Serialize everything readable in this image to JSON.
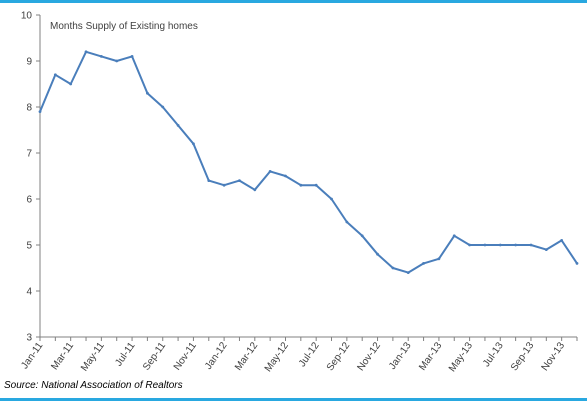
{
  "chart_data": {
    "type": "line",
    "title": "Months Supply of Existing homes",
    "xlabel": "",
    "ylabel": "",
    "ylim": [
      3,
      10
    ],
    "yticks": [
      3,
      4,
      5,
      6,
      7,
      8,
      9,
      10
    ],
    "grid": false,
    "legend": "none",
    "line_color": "#4a7ebb",
    "axis_color": "#808080",
    "x": [
      "Jan-11",
      "Feb-11",
      "Mar-11",
      "Apr-11",
      "May-11",
      "Jun-11",
      "Jul-11",
      "Aug-11",
      "Sep-11",
      "Oct-11",
      "Nov-11",
      "Dec-11",
      "Jan-12",
      "Feb-12",
      "Mar-12",
      "Apr-12",
      "May-12",
      "Jun-12",
      "Jul-12",
      "Aug-12",
      "Sep-12",
      "Oct-12",
      "Nov-12",
      "Dec-12",
      "Jan-13",
      "Feb-13",
      "Mar-13",
      "Apr-13",
      "May-13",
      "Jun-13",
      "Jul-13",
      "Aug-13",
      "Sep-13",
      "Oct-13",
      "Nov-13",
      "Dec-13"
    ],
    "xtick_labels": [
      "Jan-11",
      "Mar-11",
      "May-11",
      "Jul-11",
      "Sep-11",
      "Nov-11",
      "Jan-12",
      "Mar-12",
      "May-12",
      "Jul-12",
      "Sep-12",
      "Nov-12",
      "Jan-13",
      "Mar-13",
      "May-13",
      "Jul-13",
      "Sep-13",
      "Nov-13"
    ],
    "series": [
      {
        "values": [
          7.9,
          8.7,
          8.5,
          9.2,
          9.1,
          9.0,
          9.1,
          8.3,
          8.0,
          7.6,
          7.2,
          6.4,
          6.3,
          6.4,
          6.2,
          6.6,
          6.5,
          6.3,
          6.3,
          6.0,
          5.5,
          5.2,
          4.8,
          4.5,
          4.4,
          4.6,
          4.7,
          5.2,
          5.0,
          5.0,
          5.0,
          5.0,
          5.0,
          4.9,
          5.1,
          4.6
        ]
      }
    ]
  },
  "source_text": "Source:  National Association of Realtors"
}
